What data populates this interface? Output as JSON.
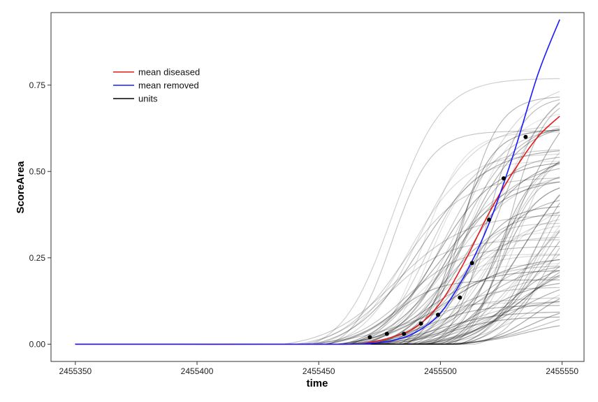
{
  "chart_data": {
    "type": "line",
    "xlabel": "time",
    "ylabel": "ScoreArea",
    "xlim": [
      2455340,
      2455559
    ],
    "ylim": [
      -0.05,
      0.96
    ],
    "x_ticks": [
      2455350,
      2455400,
      2455450,
      2455500,
      2455550
    ],
    "x_tick_labels": [
      "2455350",
      "2455400",
      "2455450",
      "2455500",
      "2455550"
    ],
    "y_ticks": [
      0.0,
      0.25,
      0.5,
      0.75
    ],
    "y_tick_labels": [
      "0.00",
      "0.25",
      "0.50",
      "0.75"
    ],
    "grid": false,
    "legend_position": "top-left",
    "legend": [
      {
        "label": "mean diseased",
        "color": "#e41a1c"
      },
      {
        "label": "mean removed",
        "color": "#1a1aff"
      },
      {
        "label": "units",
        "color": "#000000"
      }
    ],
    "series": [
      {
        "name": "mean diseased",
        "color": "#e41a1c",
        "x": [
          2455350,
          2455460,
          2455470,
          2455480,
          2455490,
          2455500,
          2455510,
          2455520,
          2455530,
          2455540,
          2455549
        ],
        "y": [
          0.0,
          0.0,
          0.004,
          0.02,
          0.05,
          0.12,
          0.24,
          0.38,
          0.5,
          0.6,
          0.66
        ]
      },
      {
        "name": "mean removed",
        "color": "#1a1aff",
        "x": [
          2455350,
          2455460,
          2455470,
          2455480,
          2455490,
          2455500,
          2455510,
          2455520,
          2455530,
          2455540,
          2455549
        ],
        "y": [
          0.0,
          0.0,
          0.002,
          0.01,
          0.035,
          0.09,
          0.2,
          0.35,
          0.55,
          0.78,
          0.94
        ]
      }
    ],
    "points": {
      "x": [
        2455471,
        2455478,
        2455485,
        2455492,
        2455499,
        2455508,
        2455513,
        2455520,
        2455526,
        2455535
      ],
      "y": [
        0.02,
        0.03,
        0.03,
        0.06,
        0.085,
        0.135,
        0.235,
        0.36,
        0.48,
        0.6
      ]
    },
    "units": {
      "count": 90,
      "color": "#000000",
      "x_end": 2455549,
      "max_range": [
        0.05,
        0.82
      ],
      "midpoint_range": [
        2455478,
        2455545
      ],
      "spread_range": [
        7,
        15
      ]
    }
  }
}
